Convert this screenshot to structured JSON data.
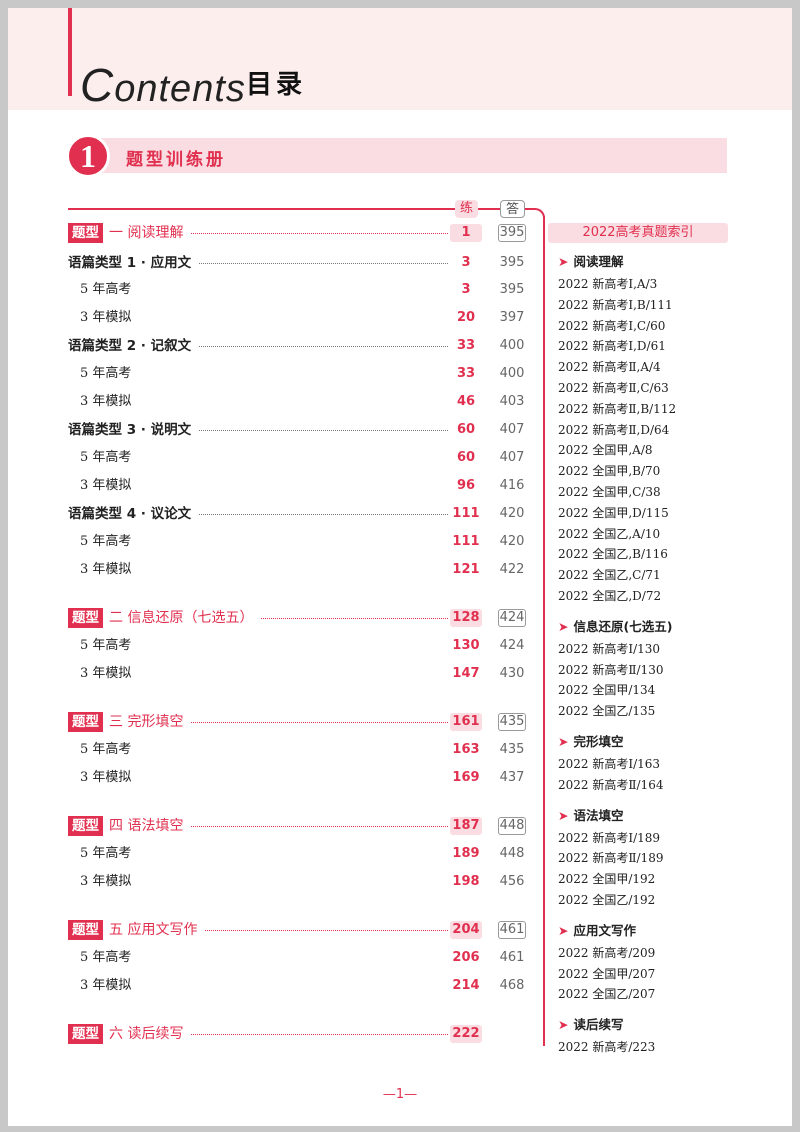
{
  "header": {
    "title_initial": "C",
    "title_rest": "ontents",
    "title_cn": "目录"
  },
  "banner": {
    "number": "1",
    "title": "题型训练册"
  },
  "columns": {
    "practice": "练",
    "answer": "答"
  },
  "sections": [
    {
      "type": "sec",
      "tag": "题型",
      "label": "一  阅读理解",
      "practice": "1",
      "answer": "395"
    },
    {
      "type": "mid",
      "label": "语篇类型 1 · 应用文",
      "practice": "3",
      "answer": "395"
    },
    {
      "type": "sub",
      "label": "5 年高考",
      "practice": "3",
      "answer": "395"
    },
    {
      "type": "sub",
      "label": "3 年模拟",
      "practice": "20",
      "answer": "397"
    },
    {
      "type": "mid",
      "label": "语篇类型 2 · 记叙文",
      "practice": "33",
      "answer": "400"
    },
    {
      "type": "sub",
      "label": "5 年高考",
      "practice": "33",
      "answer": "400"
    },
    {
      "type": "sub",
      "label": "3 年模拟",
      "practice": "46",
      "answer": "403"
    },
    {
      "type": "mid",
      "label": "语篇类型 3 · 说明文",
      "practice": "60",
      "answer": "407"
    },
    {
      "type": "sub",
      "label": "5 年高考",
      "practice": "60",
      "answer": "407"
    },
    {
      "type": "sub",
      "label": "3 年模拟",
      "practice": "96",
      "answer": "416"
    },
    {
      "type": "mid",
      "label": "语篇类型 4 · 议论文",
      "practice": "111",
      "answer": "420"
    },
    {
      "type": "sub",
      "label": "5 年高考",
      "practice": "111",
      "answer": "420"
    },
    {
      "type": "sub",
      "label": "3 年模拟",
      "practice": "121",
      "answer": "422"
    },
    {
      "type": "sec",
      "tag": "题型",
      "label": "二  信息还原（七选五）",
      "practice": "128",
      "answer": "424"
    },
    {
      "type": "sub",
      "label": "5 年高考",
      "practice": "130",
      "answer": "424"
    },
    {
      "type": "sub",
      "label": "3 年模拟",
      "practice": "147",
      "answer": "430"
    },
    {
      "type": "sec",
      "tag": "题型",
      "label": "三  完形填空",
      "practice": "161",
      "answer": "435"
    },
    {
      "type": "sub",
      "label": "5 年高考",
      "practice": "163",
      "answer": "435"
    },
    {
      "type": "sub",
      "label": "3 年模拟",
      "practice": "169",
      "answer": "437"
    },
    {
      "type": "sec",
      "tag": "题型",
      "label": "四  语法填空",
      "practice": "187",
      "answer": "448"
    },
    {
      "type": "sub",
      "label": "5 年高考",
      "practice": "189",
      "answer": "448"
    },
    {
      "type": "sub",
      "label": "3 年模拟",
      "practice": "198",
      "answer": "456"
    },
    {
      "type": "sec",
      "tag": "题型",
      "label": "五  应用文写作",
      "practice": "204",
      "answer": "461"
    },
    {
      "type": "sub",
      "label": "5 年高考",
      "practice": "206",
      "answer": "461"
    },
    {
      "type": "sub",
      "label": "3 年模拟",
      "practice": "214",
      "answer": "468"
    },
    {
      "type": "sec",
      "tag": "题型",
      "label": "六  读后续写",
      "practice": "222"
    }
  ],
  "index": {
    "title": "2022高考真题索引",
    "groups": [
      {
        "heading": "阅读理解",
        "items": [
          "2022 新高考Ⅰ,A/3",
          "2022 新高考Ⅰ,B/111",
          "2022 新高考Ⅰ,C/60",
          "2022 新高考Ⅰ,D/61",
          "2022 新高考Ⅱ,A/4",
          "2022 新高考Ⅱ,C/63",
          "2022 新高考Ⅱ,B/112",
          "2022 新高考Ⅱ,D/64",
          "2022 全国甲,A/8",
          "2022 全国甲,B/70",
          "2022 全国甲,C/38",
          "2022 全国甲,D/115",
          "2022 全国乙,A/10",
          "2022 全国乙,B/116",
          "2022 全国乙,C/71",
          "2022 全国乙,D/72"
        ]
      },
      {
        "heading": "信息还原(七选五)",
        "items": [
          "2022 新高考Ⅰ/130",
          "2022 新高考Ⅱ/130",
          "2022 全国甲/134",
          "2022 全国乙/135"
        ]
      },
      {
        "heading": "完形填空",
        "items": [
          "2022 新高考Ⅰ/163",
          "2022 新高考Ⅱ/164"
        ]
      },
      {
        "heading": "语法填空",
        "items": [
          "2022 新高考Ⅰ/189",
          "2022 新高考Ⅱ/189",
          "2022 全国甲/192",
          "2022 全国乙/192"
        ]
      },
      {
        "heading": "应用文写作",
        "items": [
          "2022 新高考/209",
          "2022 全国甲/207",
          "2022 全国乙/207"
        ]
      },
      {
        "heading": "读后续写",
        "items": [
          "2022 新高考/223"
        ]
      }
    ]
  },
  "footer": {
    "page": "—1—"
  },
  "colors": {
    "accent": "#e1304f",
    "accent_light": "#f9dde2",
    "header_bg": "#fdeeee"
  }
}
